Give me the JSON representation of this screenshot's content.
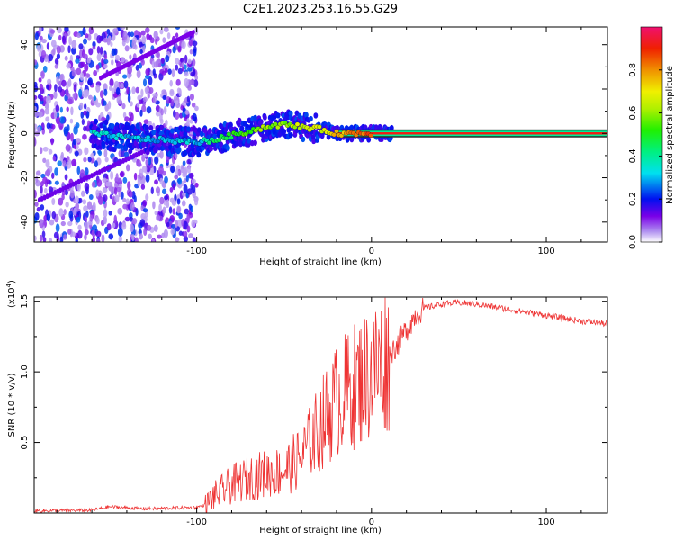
{
  "figure_title": "C2E1.2023.253.16.55.G29",
  "chart_data": [
    {
      "type": "heatmap",
      "title": "C2E1.2023.253.16.55.G29",
      "xlabel": "Height of straight line (km)",
      "ylabel": "Frequency (Hz)",
      "xlim": [
        -193,
        135
      ],
      "ylim": [
        -49,
        48
      ],
      "x_ticks": [
        -100,
        0,
        100
      ],
      "x_tick_labels": [
        "-100",
        "0",
        "100"
      ],
      "y_ticks": [
        -40,
        -20,
        0,
        20,
        40
      ],
      "y_tick_labels": [
        "-40",
        "-20",
        "0",
        "20",
        "40"
      ],
      "colorbar": {
        "label": "Normalized spectral amplitude",
        "range": [
          0,
          1
        ],
        "ticks": [
          0.0,
          0.2,
          0.4,
          0.6,
          0.8
        ],
        "tick_labels": [
          "0.0",
          "0.2",
          "0.4",
          "0.6",
          "0.8"
        ]
      },
      "noise_region_x": [
        -193,
        -100
      ],
      "carrier_track": [
        {
          "x": -160,
          "y": 0,
          "amp": 0.35
        },
        {
          "x": -140,
          "y": -2,
          "amp": 0.3
        },
        {
          "x": -120,
          "y": -3,
          "amp": 0.3
        },
        {
          "x": -100,
          "y": -4,
          "amp": 0.3
        },
        {
          "x": -90,
          "y": -3,
          "amp": 0.45
        },
        {
          "x": -80,
          "y": -1,
          "amp": 0.5
        },
        {
          "x": -70,
          "y": 1,
          "amp": 0.55
        },
        {
          "x": -60,
          "y": 3,
          "amp": 0.6
        },
        {
          "x": -50,
          "y": 4,
          "amp": 0.6
        },
        {
          "x": -40,
          "y": 3,
          "amp": 0.65
        },
        {
          "x": -30,
          "y": 2,
          "amp": 0.65
        },
        {
          "x": -20,
          "y": 0,
          "amp": 0.75
        },
        {
          "x": -10,
          "y": 0,
          "amp": 0.8
        },
        {
          "x": 0,
          "y": 0,
          "amp": 0.85
        },
        {
          "x": 10,
          "y": 0,
          "amp": 0.9
        },
        {
          "x": 135,
          "y": 0,
          "amp": 0.95
        }
      ]
    },
    {
      "type": "line",
      "xlabel": "Height of straight line (km)",
      "ylabel": "SNR (10 * v/v)",
      "y_multiplier_label": "(x10",
      "y_multiplier_exponent": "4",
      "y_multiplier_close": ")",
      "xlim": [
        -193,
        135
      ],
      "ylim": [
        0,
        15300
      ],
      "x_ticks": [
        -100,
        0,
        100
      ],
      "x_tick_labels": [
        "-100",
        "0",
        "100"
      ],
      "y_ticks": [
        5000,
        10000,
        15000
      ],
      "y_tick_labels": [
        "0.5",
        "1.0",
        "1.5"
      ],
      "color": "#ee3333",
      "series": [
        {
          "name": "SNR",
          "x": [
            -193,
            -160,
            -150,
            -130,
            -100,
            -95,
            -90,
            -80,
            -70,
            -60,
            -50,
            -45,
            -40,
            -35,
            -30,
            -25,
            -20,
            -15,
            -10,
            -5,
            0,
            5,
            10,
            15,
            20,
            25,
            30,
            40,
            50,
            60,
            70,
            80,
            90,
            100,
            110,
            120,
            135
          ],
          "y": [
            150,
            200,
            450,
            300,
            400,
            600,
            1200,
            2000,
            2500,
            2800,
            3000,
            3500,
            4000,
            5000,
            6000,
            7000,
            8000,
            8500,
            9000,
            9500,
            10000,
            10500,
            11200,
            12000,
            13000,
            14000,
            14500,
            14800,
            14900,
            14800,
            14600,
            14400,
            14200,
            14000,
            13800,
            13600,
            13400
          ]
        }
      ]
    }
  ]
}
